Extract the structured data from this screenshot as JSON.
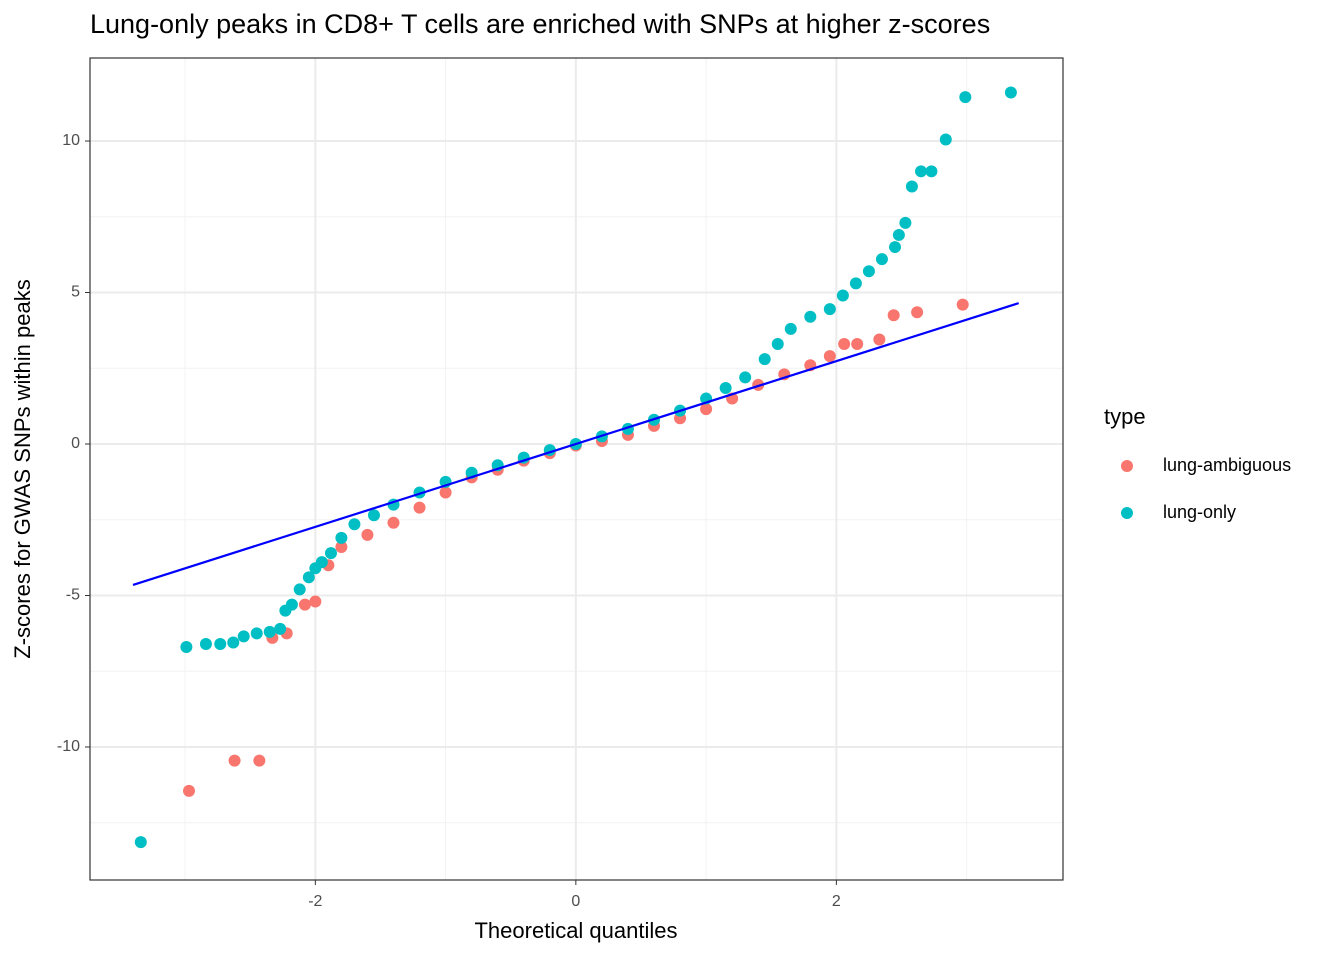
{
  "chart_data": {
    "type": "scatter",
    "title": "Lung-only peaks in CD8+ T cells are enriched with SNPs at higher z-scores",
    "x_label": "Theoretical quantiles",
    "y_label": "Z-scores for GWAS SNPs within peaks",
    "legend_title": "type",
    "xlim": [
      -3.73,
      3.74
    ],
    "ylim": [
      -14.39,
      12.74
    ],
    "xticks": [
      -2,
      0,
      2
    ],
    "yticks": [
      -10,
      -5,
      0,
      5,
      10
    ],
    "xminor": [
      -3,
      -1,
      1,
      3
    ],
    "yminor": [
      -12.5,
      -7.5,
      -2.5,
      2.5,
      7.5
    ],
    "grid": true,
    "series": [
      {
        "name": "lung-ambiguous",
        "color": "#f8766d",
        "x": [
          -2.97,
          -2.62,
          -2.43,
          -2.33,
          -2.22,
          -2.08,
          -2.0,
          -1.9,
          -1.8,
          -1.6,
          -1.4,
          -1.2,
          -1.0,
          -0.8,
          -0.6,
          -0.4,
          -0.2,
          0,
          0.2,
          0.4,
          0.6,
          0.8,
          1.0,
          1.2,
          1.4,
          1.6,
          1.8,
          1.95,
          2.06,
          2.16,
          2.33,
          2.44,
          2.62,
          2.97
        ],
        "values": [
          -11.45,
          -10.45,
          -10.45,
          -6.4,
          -6.25,
          -5.3,
          -5.2,
          -4.0,
          -3.4,
          -3.0,
          -2.6,
          -2.1,
          -1.6,
          -1.1,
          -0.85,
          -0.55,
          -0.3,
          -0.05,
          0.1,
          0.3,
          0.6,
          0.85,
          1.15,
          1.5,
          1.95,
          2.3,
          2.6,
          2.9,
          3.3,
          3.3,
          3.45,
          4.25,
          4.35,
          4.6
        ]
      },
      {
        "name": "lung-only",
        "color": "#00bfc4",
        "x": [
          -3.34,
          -2.99,
          -2.84,
          -2.73,
          -2.63,
          -2.55,
          -2.45,
          -2.35,
          -2.27,
          -2.23,
          -2.18,
          -2.12,
          -2.05,
          -2.0,
          -1.95,
          -1.88,
          -1.8,
          -1.7,
          -1.55,
          -1.4,
          -1.2,
          -1.0,
          -0.8,
          -0.6,
          -0.4,
          -0.2,
          0,
          0.2,
          0.4,
          0.6,
          0.8,
          1.0,
          1.15,
          1.3,
          1.45,
          1.55,
          1.65,
          1.8,
          1.95,
          2.05,
          2.15,
          2.25,
          2.35,
          2.45,
          2.48,
          2.53,
          2.58,
          2.65,
          2.73,
          2.84,
          2.99,
          3.34
        ],
        "values": [
          -13.14,
          -6.7,
          -6.6,
          -6.6,
          -6.55,
          -6.35,
          -6.25,
          -6.2,
          -6.1,
          -5.5,
          -5.3,
          -4.8,
          -4.4,
          -4.1,
          -3.9,
          -3.6,
          -3.1,
          -2.65,
          -2.35,
          -2.0,
          -1.6,
          -1.25,
          -0.95,
          -0.7,
          -0.45,
          -0.2,
          0.0,
          0.25,
          0.5,
          0.8,
          1.1,
          1.5,
          1.85,
          2.2,
          2.8,
          3.3,
          3.8,
          4.2,
          4.45,
          4.9,
          5.3,
          5.7,
          6.1,
          6.5,
          6.9,
          7.3,
          8.5,
          9.0,
          9.0,
          10.05,
          11.45,
          11.6
        ]
      }
    ],
    "reference_line": {
      "color": "#0000ff",
      "x": [
        -3.4,
        3.4
      ],
      "values": [
        -4.65,
        4.65
      ]
    }
  }
}
